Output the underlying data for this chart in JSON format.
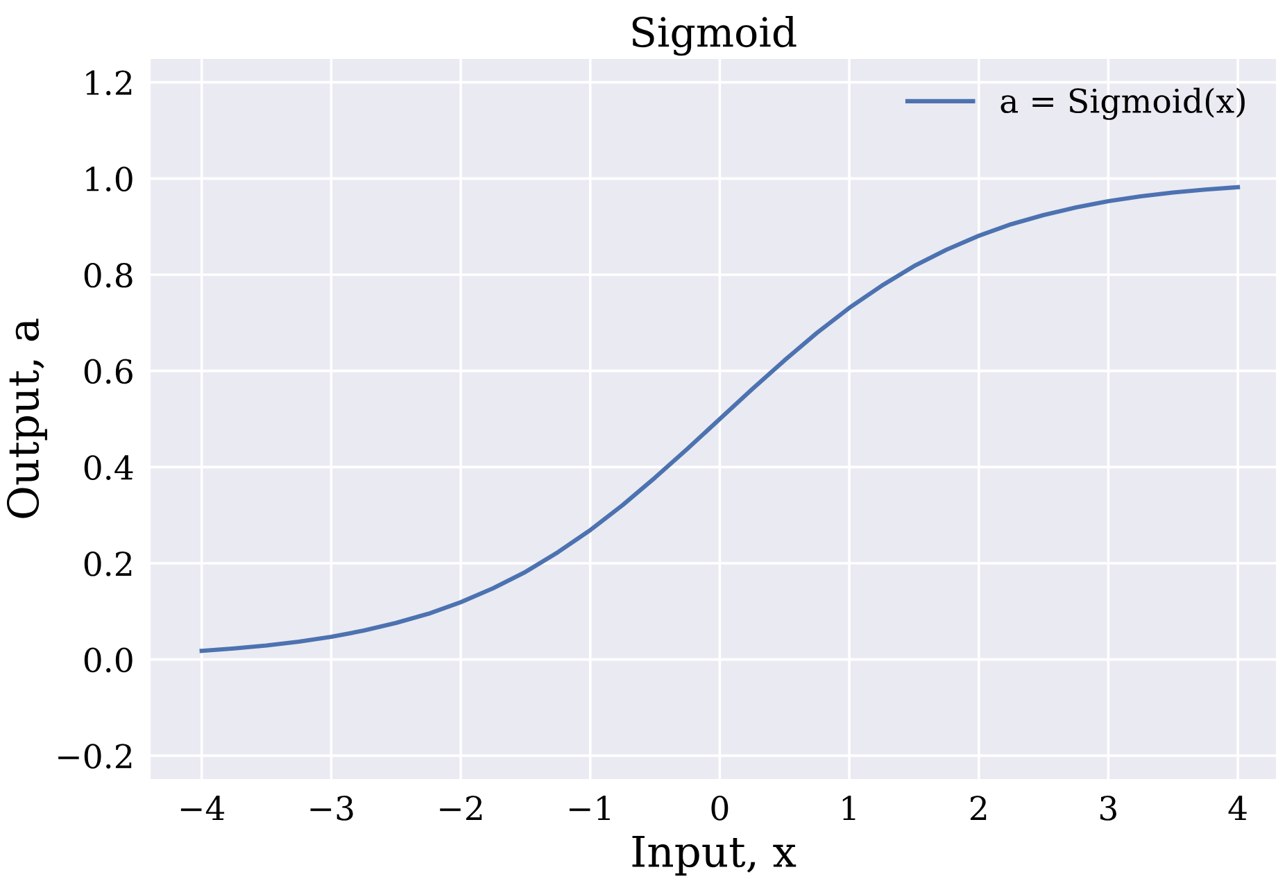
{
  "chart_data": {
    "type": "line",
    "title": "Sigmoid",
    "xlabel": "Input, x",
    "ylabel": "Output, a",
    "x": [
      -4,
      -3.75,
      -3.5,
      -3.25,
      -3,
      -2.75,
      -2.5,
      -2.25,
      -2,
      -1.75,
      -1.5,
      -1.25,
      -1,
      -0.75,
      -0.5,
      -0.25,
      0,
      0.25,
      0.5,
      0.75,
      1,
      1.25,
      1.5,
      1.75,
      2,
      2.25,
      2.5,
      2.75,
      3,
      3.25,
      3.5,
      3.75,
      4
    ],
    "series": [
      {
        "name": "a = Sigmoid(x)",
        "color": "#4c72b0",
        "values": [
          0.018,
          0.023,
          0.029,
          0.037,
          0.047,
          0.06,
          0.076,
          0.095,
          0.119,
          0.148,
          0.182,
          0.223,
          0.269,
          0.321,
          0.378,
          0.438,
          0.5,
          0.562,
          0.622,
          0.679,
          0.731,
          0.777,
          0.818,
          0.852,
          0.881,
          0.905,
          0.924,
          0.94,
          0.953,
          0.963,
          0.971,
          0.977,
          0.982
        ]
      }
    ],
    "xlim": [
      -4.4,
      4.3
    ],
    "ylim": [
      -0.25,
      1.25
    ],
    "xticks": [
      -4,
      -3,
      -2,
      -1,
      0,
      1,
      2,
      3,
      4
    ],
    "yticks": [
      {
        "value": -0.2,
        "label": "−0.2"
      },
      {
        "value": 0,
        "label": "0.0"
      },
      {
        "value": 0.2,
        "label": "0.2"
      },
      {
        "value": 0.4,
        "label": "0.4"
      },
      {
        "value": 0.6,
        "label": "0.6"
      },
      {
        "value": 0.8,
        "label": "0.8"
      },
      {
        "value": 1,
        "label": "1.0"
      },
      {
        "value": 1.2,
        "label": "1.2"
      }
    ],
    "grid": true,
    "legend": "top right",
    "marker": "none",
    "line_style": "solid"
  }
}
